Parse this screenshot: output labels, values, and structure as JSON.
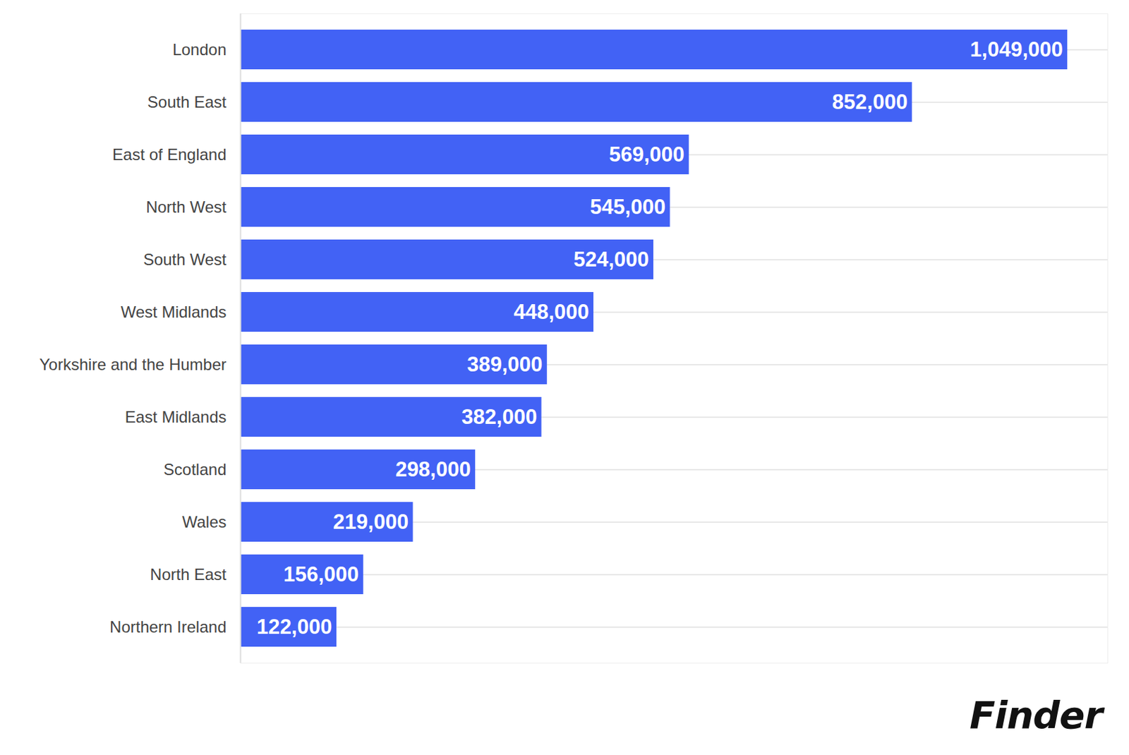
{
  "chart_data": {
    "type": "bar",
    "orientation": "horizontal",
    "categories": [
      "London",
      "South East",
      "East of England",
      "North West",
      "South West",
      "West Midlands",
      "Yorkshire and the Humber",
      "East Midlands",
      "Scotland",
      "Wales",
      "North East",
      "Northern Ireland"
    ],
    "values": [
      1049000,
      852000,
      569000,
      545000,
      524000,
      448000,
      389000,
      382000,
      298000,
      219000,
      156000,
      122000
    ],
    "value_labels": [
      "1,049,000",
      "852,000",
      "569,000",
      "545,000",
      "524,000",
      "448,000",
      "389,000",
      "382,000",
      "298,000",
      "219,000",
      "156,000",
      "122,000"
    ],
    "color": "#4262f5",
    "xlim": [
      0,
      1100000
    ],
    "xticks": [],
    "tick_labels": "y",
    "grid": true,
    "data_labels": true,
    "caption": "Finder"
  }
}
